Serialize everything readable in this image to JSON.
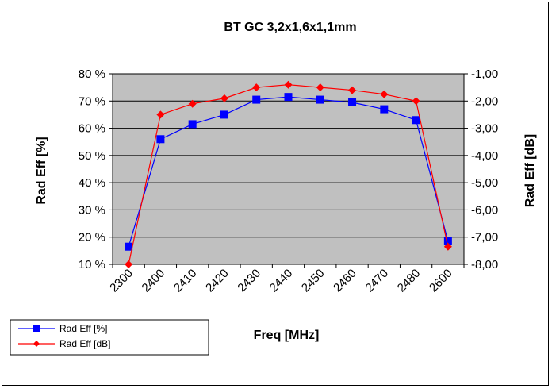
{
  "chart_data": {
    "type": "line",
    "title": "BT GC 3,2x1,6x1,1mm",
    "xlabel": "Freq [MHz]",
    "ylabel": "Rad Eff [%]",
    "y2label": "Rad Eff [dB]",
    "categories": [
      "2300",
      "2400",
      "2410",
      "2420",
      "2430",
      "2440",
      "2450",
      "2460",
      "2470",
      "2480",
      "2600"
    ],
    "ylim": [
      10,
      80
    ],
    "y2lim": [
      -8,
      -1
    ],
    "yticks": [
      "10 %",
      "20 %",
      "30 %",
      "40 %",
      "50 %",
      "60 %",
      "70 %",
      "80 %"
    ],
    "y2ticks": [
      "-8,00",
      "-7,00",
      "-6,00",
      "-5,00",
      "-4,00",
      "-3,00",
      "-2,00",
      "-1,00"
    ],
    "grid": true,
    "legend_position": "bottom-left",
    "plot_background": "#c0c0c0",
    "series": [
      {
        "name": "Rad Eff [%]",
        "axis": "left",
        "color": "#0000ff",
        "marker": "square",
        "values": [
          16.5,
          56,
          61.5,
          65,
          70.5,
          71.5,
          70.5,
          69.5,
          67,
          63,
          18.5
        ]
      },
      {
        "name": "Rad Eff [dB]",
        "axis": "right",
        "color": "#ff0000",
        "marker": "diamond",
        "values": [
          -8.0,
          -2.5,
          -2.1,
          -1.9,
          -1.5,
          -1.4,
          -1.5,
          -1.6,
          -1.75,
          -2.0,
          -7.35
        ]
      }
    ]
  }
}
